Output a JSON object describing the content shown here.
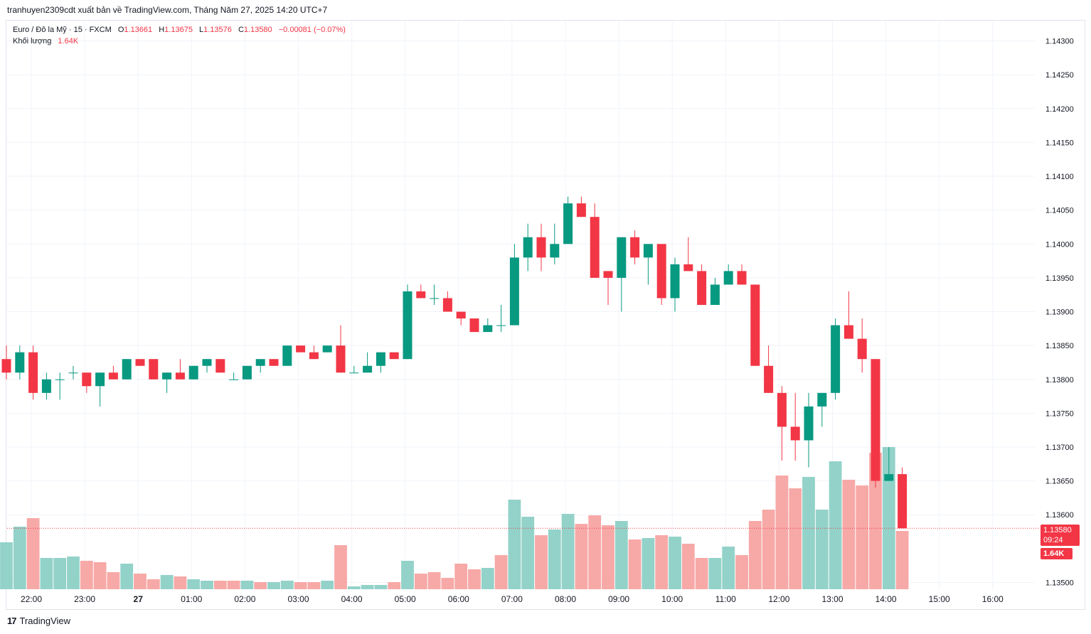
{
  "header": {
    "publish_line": "tranhuyen2309cdt xuất bản về TradingView.com, Tháng Năm 27, 2025 14:20 UTC+7"
  },
  "legend": {
    "symbol": "Euro / Đô la Mỹ · 15 · FXCM",
    "open_label": "O",
    "open": "1.13661",
    "high_label": "H",
    "high": "1.13675",
    "low_label": "L",
    "low": "1.13576",
    "close_label": "C",
    "close": "1.13580",
    "change": "−0.00081 (−0.07%)",
    "volume_label": "Khối lượng",
    "volume": "1.64K"
  },
  "price_scale": {
    "last_price": "1.13580",
    "countdown": "09:24",
    "last_volume": "1.64K"
  },
  "branding": {
    "logo_text": "TradingView",
    "logo_mark": "17"
  },
  "colors": {
    "up": "#089981",
    "down": "#f23645",
    "up_volume": "#93d2c9",
    "down_volume": "#f7a9a7",
    "grid": "#f0f3fa",
    "text": "#131722"
  },
  "chart_data": {
    "type": "candlestick",
    "interval": "15",
    "symbol": "EURUSD",
    "ylim": [
      1.1349,
      1.1433
    ],
    "yticks": [
      "1.14300",
      "1.14250",
      "1.14200",
      "1.14150",
      "1.14100",
      "1.14050",
      "1.14000",
      "1.13950",
      "1.13900",
      "1.13850",
      "1.13800",
      "1.13750",
      "1.13700",
      "1.13650",
      "1.13600",
      "1.13500"
    ],
    "xticks": [
      "22:00",
      "23:00",
      "27",
      "01:00",
      "02:00",
      "03:00",
      "04:00",
      "05:00",
      "06:00",
      "07:00",
      "08:00",
      "09:00",
      "10:00",
      "11:00",
      "12:00",
      "13:00",
      "14:00",
      "15:00",
      "16:00"
    ],
    "candles": [
      [
        1.1383,
        1.1385,
        1.138,
        1.1381
      ],
      [
        1.1381,
        1.1385,
        1.138,
        1.1384
      ],
      [
        1.1384,
        1.1385,
        1.1377,
        1.1378
      ],
      [
        1.1378,
        1.1381,
        1.1377,
        1.138
      ],
      [
        1.138,
        1.1381,
        1.1377,
        1.138
      ],
      [
        1.1381,
        1.1382,
        1.138,
        1.1381
      ],
      [
        1.1381,
        1.1381,
        1.1378,
        1.1379
      ],
      [
        1.1379,
        1.1381,
        1.1376,
        1.1381
      ],
      [
        1.1381,
        1.1382,
        1.138,
        1.138
      ],
      [
        1.138,
        1.1383,
        1.138,
        1.1383
      ],
      [
        1.1383,
        1.1383,
        1.1382,
        1.1382
      ],
      [
        1.1383,
        1.1383,
        1.138,
        1.138
      ],
      [
        1.138,
        1.1381,
        1.1378,
        1.1381
      ],
      [
        1.1381,
        1.1383,
        1.138,
        1.138
      ],
      [
        1.138,
        1.1382,
        1.138,
        1.1382
      ],
      [
        1.1382,
        1.1383,
        1.1381,
        1.1383
      ],
      [
        1.1383,
        1.1383,
        1.1381,
        1.1381
      ],
      [
        1.138,
        1.1381,
        1.138,
        1.138
      ],
      [
        1.138,
        1.1382,
        1.138,
        1.1382
      ],
      [
        1.1382,
        1.1383,
        1.1381,
        1.1383
      ],
      [
        1.1383,
        1.1383,
        1.1382,
        1.1382
      ],
      [
        1.1382,
        1.1385,
        1.1382,
        1.1385
      ],
      [
        1.1385,
        1.1385,
        1.1384,
        1.1384
      ],
      [
        1.1384,
        1.1385,
        1.1383,
        1.1383
      ],
      [
        1.1384,
        1.1385,
        1.1384,
        1.1385
      ],
      [
        1.1385,
        1.1388,
        1.1381,
        1.1381
      ],
      [
        1.1381,
        1.1382,
        1.1381,
        1.1381
      ],
      [
        1.1381,
        1.1384,
        1.1381,
        1.1382
      ],
      [
        1.1382,
        1.1384,
        1.1381,
        1.1384
      ],
      [
        1.1384,
        1.1384,
        1.1383,
        1.1383
      ],
      [
        1.1383,
        1.1394,
        1.1383,
        1.1393
      ],
      [
        1.1393,
        1.1394,
        1.1392,
        1.1392
      ],
      [
        1.1392,
        1.1394,
        1.1391,
        1.1392
      ],
      [
        1.1392,
        1.1393,
        1.139,
        1.139
      ],
      [
        1.139,
        1.139,
        1.1388,
        1.1389
      ],
      [
        1.1389,
        1.1389,
        1.1387,
        1.1387
      ],
      [
        1.1387,
        1.1389,
        1.1387,
        1.1388
      ],
      [
        1.1388,
        1.1391,
        1.1387,
        1.1388
      ],
      [
        1.1388,
        1.14,
        1.1388,
        1.1398
      ],
      [
        1.1398,
        1.1403,
        1.1396,
        1.1401
      ],
      [
        1.1401,
        1.1403,
        1.1396,
        1.1398
      ],
      [
        1.1398,
        1.1403,
        1.1397,
        1.14
      ],
      [
        1.14,
        1.1407,
        1.14,
        1.1406
      ],
      [
        1.1406,
        1.1407,
        1.1404,
        1.1404
      ],
      [
        1.1404,
        1.1406,
        1.1395,
        1.1395
      ],
      [
        1.1396,
        1.1396,
        1.1391,
        1.1395
      ],
      [
        1.1395,
        1.1401,
        1.139,
        1.1401
      ],
      [
        1.1401,
        1.1402,
        1.1397,
        1.1398
      ],
      [
        1.1398,
        1.14,
        1.1394,
        1.14
      ],
      [
        1.14,
        1.14,
        1.1391,
        1.1392
      ],
      [
        1.1392,
        1.1398,
        1.139,
        1.1397
      ],
      [
        1.1397,
        1.1401,
        1.1396,
        1.1396
      ],
      [
        1.1396,
        1.1397,
        1.1391,
        1.1391
      ],
      [
        1.1391,
        1.1395,
        1.1391,
        1.1394
      ],
      [
        1.1394,
        1.1397,
        1.1394,
        1.1396
      ],
      [
        1.1396,
        1.1397,
        1.1394,
        1.1394
      ],
      [
        1.1394,
        1.1394,
        1.1382,
        1.1382
      ],
      [
        1.1382,
        1.1385,
        1.1378,
        1.1378
      ],
      [
        1.1378,
        1.1379,
        1.1368,
        1.1373
      ],
      [
        1.1373,
        1.1378,
        1.1368,
        1.1371
      ],
      [
        1.1371,
        1.1378,
        1.1367,
        1.1376
      ],
      [
        1.1376,
        1.1378,
        1.1373,
        1.1378
      ],
      [
        1.1378,
        1.1389,
        1.1377,
        1.1388
      ],
      [
        1.1388,
        1.1393,
        1.1386,
        1.1386
      ],
      [
        1.1386,
        1.1389,
        1.1381,
        1.1383
      ],
      [
        1.1383,
        1.1383,
        1.1364,
        1.1365
      ],
      [
        1.1365,
        1.137,
        1.1365,
        1.1366
      ],
      [
        1.1366,
        1.1367,
        1.1358,
        1.1358
      ]
    ],
    "volumes": [
      [
        0.33,
        "up"
      ],
      [
        0.44,
        "up"
      ],
      [
        0.5,
        "down"
      ],
      [
        0.22,
        "up"
      ],
      [
        0.22,
        "up"
      ],
      [
        0.23,
        "up"
      ],
      [
        0.2,
        "down"
      ],
      [
        0.19,
        "down"
      ],
      [
        0.12,
        "down"
      ],
      [
        0.18,
        "up"
      ],
      [
        0.11,
        "down"
      ],
      [
        0.07,
        "down"
      ],
      [
        0.1,
        "up"
      ],
      [
        0.09,
        "down"
      ],
      [
        0.07,
        "up"
      ],
      [
        0.06,
        "up"
      ],
      [
        0.06,
        "down"
      ],
      [
        0.06,
        "down"
      ],
      [
        0.06,
        "up"
      ],
      [
        0.05,
        "down"
      ],
      [
        0.05,
        "up"
      ],
      [
        0.06,
        "up"
      ],
      [
        0.05,
        "down"
      ],
      [
        0.05,
        "down"
      ],
      [
        0.06,
        "up"
      ],
      [
        0.31,
        "down"
      ],
      [
        0.02,
        "up"
      ],
      [
        0.03,
        "up"
      ],
      [
        0.03,
        "up"
      ],
      [
        0.05,
        "down"
      ],
      [
        0.2,
        "up"
      ],
      [
        0.11,
        "down"
      ],
      [
        0.12,
        "down"
      ],
      [
        0.08,
        "down"
      ],
      [
        0.18,
        "down"
      ],
      [
        0.14,
        "down"
      ],
      [
        0.15,
        "up"
      ],
      [
        0.24,
        "down"
      ],
      [
        0.63,
        "up"
      ],
      [
        0.51,
        "up"
      ],
      [
        0.38,
        "down"
      ],
      [
        0.42,
        "up"
      ],
      [
        0.53,
        "up"
      ],
      [
        0.46,
        "down"
      ],
      [
        0.52,
        "down"
      ],
      [
        0.45,
        "down"
      ],
      [
        0.48,
        "up"
      ],
      [
        0.35,
        "down"
      ],
      [
        0.36,
        "up"
      ],
      [
        0.38,
        "down"
      ],
      [
        0.37,
        "up"
      ],
      [
        0.32,
        "down"
      ],
      [
        0.22,
        "down"
      ],
      [
        0.22,
        "up"
      ],
      [
        0.3,
        "up"
      ],
      [
        0.24,
        "down"
      ],
      [
        0.48,
        "down"
      ],
      [
        0.56,
        "down"
      ],
      [
        0.8,
        "down"
      ],
      [
        0.71,
        "down"
      ],
      [
        0.79,
        "up"
      ],
      [
        0.56,
        "up"
      ],
      [
        0.9,
        "up"
      ],
      [
        0.77,
        "down"
      ],
      [
        0.73,
        "down"
      ],
      [
        0.96,
        "down"
      ],
      [
        1.0,
        "up"
      ],
      [
        0.41,
        "down"
      ]
    ]
  }
}
